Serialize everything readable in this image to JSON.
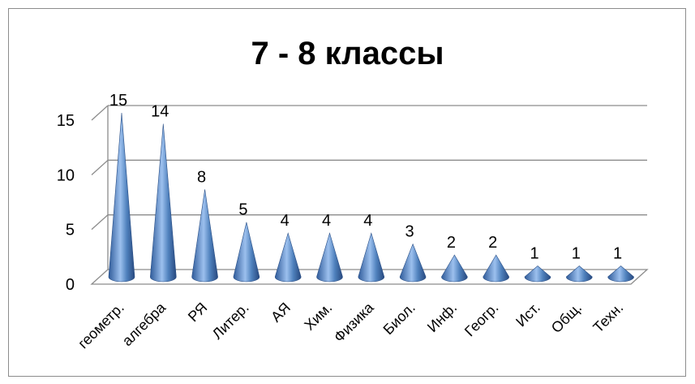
{
  "chart_data": {
    "type": "bar",
    "title": "7 - 8 классы",
    "xlabel": "",
    "ylabel": "",
    "categories": [
      "геометр.",
      "алгебра",
      "РЯ",
      "Литер.",
      "АЯ",
      "Хим.",
      "Физика",
      "Биол.",
      "Инф.",
      "Геогр.",
      "Ист.",
      "Общ.",
      "Техн."
    ],
    "values": [
      15,
      14,
      8,
      5,
      4,
      4,
      4,
      3,
      2,
      2,
      1,
      1,
      1
    ],
    "ylim": [
      0,
      15
    ],
    "yticks": [
      "0",
      "5",
      "10",
      "15"
    ],
    "grid": true,
    "legend": "none",
    "bar_shape": "cone",
    "colors": {
      "cone_dark": "#2f5b9a",
      "cone_light": "#9cc0ee",
      "cone_mid": "#4f81bd",
      "grid": "#8c8c8c"
    }
  }
}
